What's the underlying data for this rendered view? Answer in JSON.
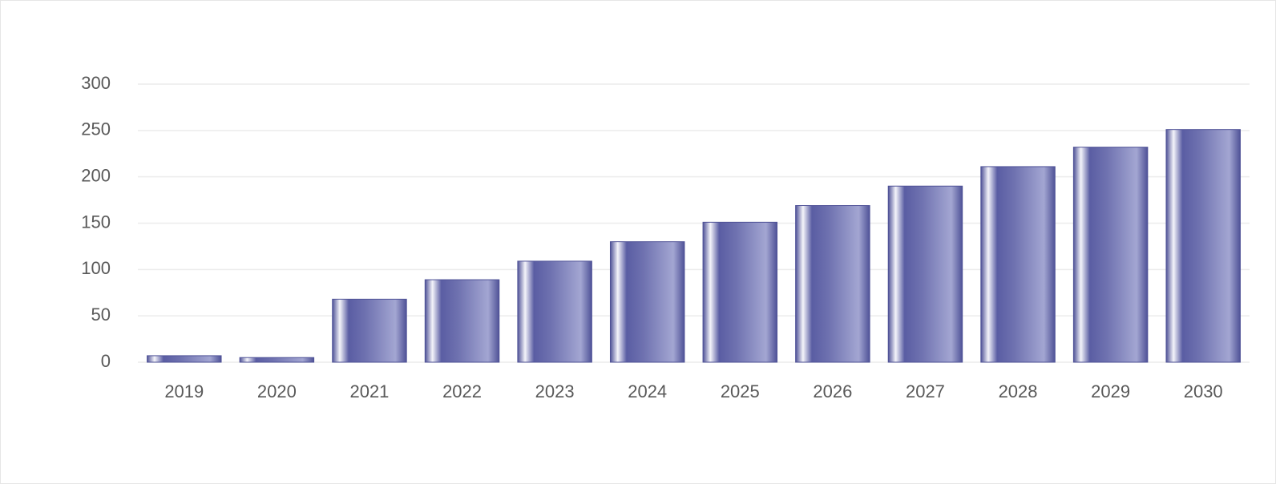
{
  "chart_data": {
    "type": "bar",
    "categories": [
      "2019",
      "2020",
      "2021",
      "2022",
      "2023",
      "2024",
      "2025",
      "2026",
      "2027",
      "2028",
      "2029",
      "2030"
    ],
    "values": [
      7,
      5,
      68,
      89,
      109,
      130,
      151,
      169,
      190,
      211,
      232,
      251
    ],
    "color": "#4f5297",
    "ylim": [
      0,
      300
    ],
    "yticks": [
      0,
      50,
      100,
      150,
      200,
      250,
      300
    ],
    "grid": true
  }
}
